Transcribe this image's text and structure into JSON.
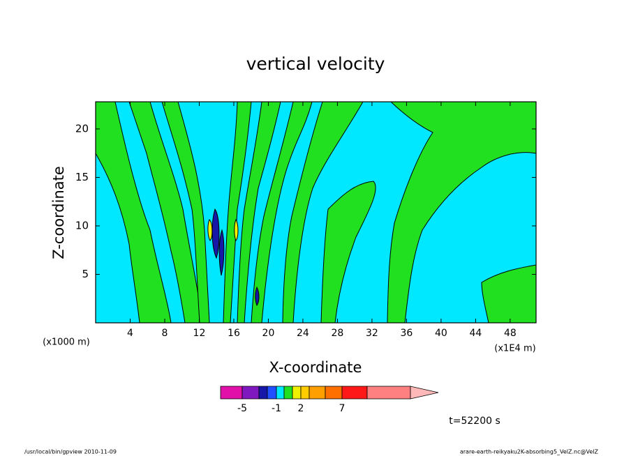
{
  "chart_data": {
    "type": "contour",
    "title": "vertical velocity",
    "xlabel": "X-coordinate",
    "ylabel": "Z-coordinate",
    "xunit": "(x1E4 m)",
    "yunit": "(x1000 m)",
    "xlim": [
      0,
      51
    ],
    "ylim": [
      0,
      22.8
    ],
    "xticks": [
      4,
      8,
      12,
      16,
      20,
      24,
      28,
      32,
      36,
      40,
      44,
      48
    ],
    "yticks": [
      5,
      10,
      15,
      20
    ],
    "colorbar": {
      "colors": [
        "#e010a8",
        "#8018c0",
        "#1818a8",
        "#2050ff",
        "#00e8ff",
        "#20e020",
        "#f0f000",
        "#ffcc00",
        "#ffa000",
        "#ff7000",
        "#ff1818",
        "#ff8080",
        "#ffb8b8"
      ],
      "ticks": [
        -5,
        -1,
        2,
        7
      ]
    },
    "time_label": "t=52200 s",
    "footer_left": "/usr/local/bin/gpview  2010-11-09",
    "footer_right": "arare-earth-reikyaku2K-absorbing5_VelZ.nc@VelZ"
  }
}
